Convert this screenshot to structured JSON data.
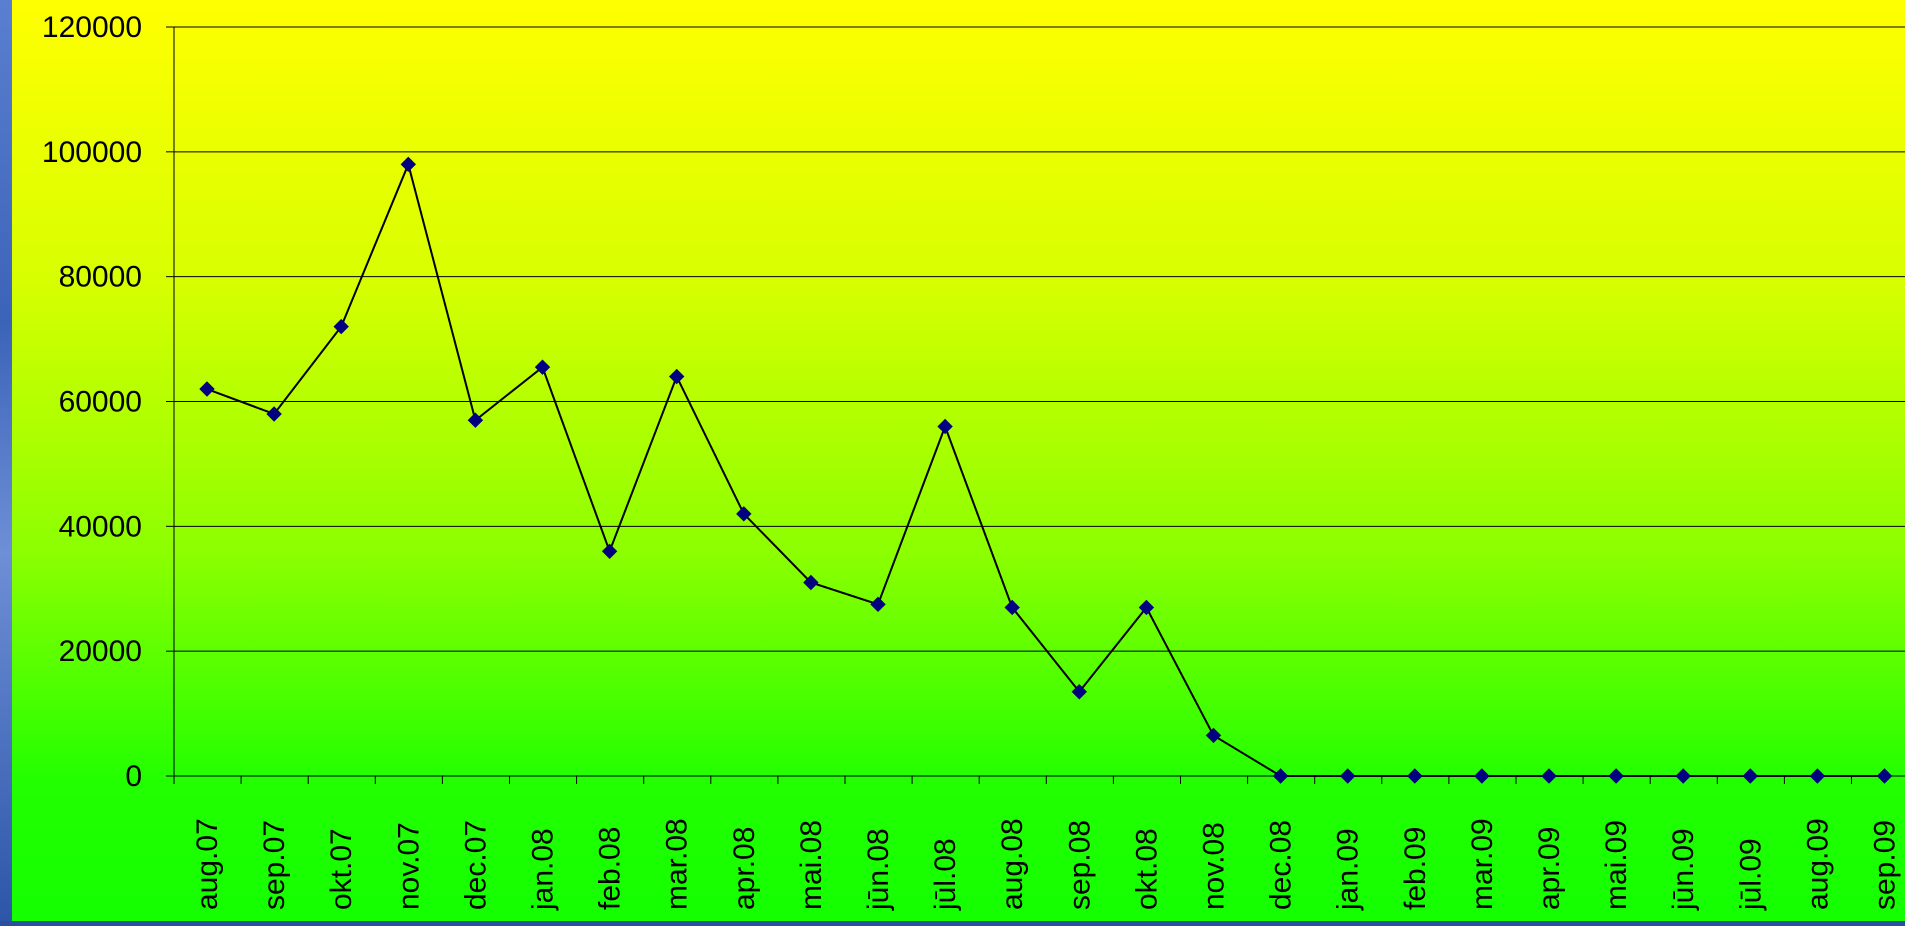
{
  "colors": {
    "line": "#000000",
    "marker": "#000080",
    "gridline": "#000000",
    "background_top": "#ffff00",
    "background_bottom": "#14ff00"
  },
  "chart_data": {
    "type": "line",
    "title": "",
    "xlabel": "",
    "ylabel": "",
    "ylim": [
      0,
      120000
    ],
    "yticks": [
      "0",
      "20000",
      "40000",
      "60000",
      "80000",
      "100000",
      "120000"
    ],
    "grid": true,
    "legend": "none",
    "categories": [
      "aug.07",
      "sep.07",
      "okt.07",
      "nov.07",
      "dec.07",
      "jan.08",
      "feb.08",
      "mar.08",
      "apr.08",
      "mai.08",
      "jūn.08",
      "jūl.08",
      "aug.08",
      "sep.08",
      "okt.08",
      "nov.08",
      "dec.08",
      "jan.09",
      "feb.09",
      "mar.09",
      "apr.09",
      "mai.09",
      "jūn.09",
      "jūl.09",
      "aug.09",
      "sep.09"
    ],
    "series": [
      {
        "values": [
          62000,
          58000,
          72000,
          98000,
          57000,
          65500,
          36000,
          64000,
          42000,
          31000,
          27500,
          56000,
          27000,
          13500,
          27000,
          6500,
          0,
          0,
          0,
          0,
          0,
          0,
          0,
          0,
          0,
          0
        ]
      }
    ]
  }
}
